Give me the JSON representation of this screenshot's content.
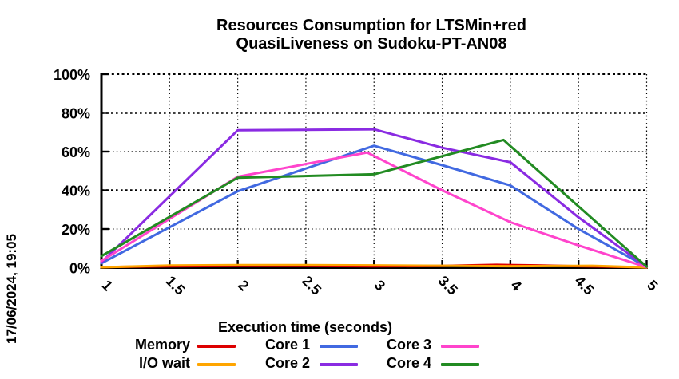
{
  "timestamp": "17/06/2024, 19:05",
  "title": {
    "line1": "Resources Consumption for LTSMin+red",
    "line2": "QuasiLiveness on Sudoku-PT-AN08"
  },
  "chart_data": {
    "type": "line",
    "title": "Resources Consumption for LTSMin+red QuasiLiveness on Sudoku-PT-AN08",
    "xlabel": "Execution time (seconds)",
    "ylabel": "",
    "xlim": [
      1,
      5
    ],
    "ylim": [
      0,
      100
    ],
    "grid": "dotted-black",
    "legend_position": "bottom",
    "xticks": {
      "values": [
        1,
        1.5,
        2,
        2.5,
        3,
        3.5,
        4,
        4.5,
        5
      ],
      "labels": [
        "1",
        "1.5",
        "2",
        "2.5",
        "3",
        "3.5",
        "4",
        "4.5",
        "5"
      ]
    },
    "yticks": {
      "values": [
        0,
        20,
        40,
        60,
        80,
        100
      ],
      "labels": [
        "0%",
        "20%",
        "40%",
        "60%",
        "80%",
        "100%"
      ]
    },
    "series": [
      {
        "name": "Memory",
        "color": "#dd0000",
        "points": [
          [
            1,
            0.3
          ],
          [
            1.5,
            0.7
          ],
          [
            2,
            0.9
          ],
          [
            2.5,
            0.9
          ],
          [
            3,
            0.7
          ],
          [
            3.5,
            0.9
          ],
          [
            3.9,
            1.5
          ],
          [
            4.2,
            1.2
          ],
          [
            4.5,
            0.8
          ],
          [
            5,
            0.2
          ]
        ]
      },
      {
        "name": "I/O wait",
        "color": "#ffa500",
        "points": [
          [
            1,
            0.2
          ],
          [
            1.5,
            1.1
          ],
          [
            2,
            1.3
          ],
          [
            2.5,
            1.3
          ],
          [
            3,
            1.2
          ],
          [
            3.5,
            1.0
          ],
          [
            4,
            0.8
          ],
          [
            4.6,
            1.0
          ],
          [
            5,
            0.1
          ]
        ]
      },
      {
        "name": "Core 1",
        "color": "#4169e1",
        "points": [
          [
            1,
            2.3
          ],
          [
            2,
            39.5
          ],
          [
            3,
            63
          ],
          [
            3.5,
            53
          ],
          [
            4,
            42.5
          ],
          [
            4.5,
            20
          ],
          [
            5,
            0.4
          ]
        ]
      },
      {
        "name": "Core 2",
        "color": "#8a2be2",
        "points": [
          [
            1,
            2.8
          ],
          [
            2,
            71
          ],
          [
            3,
            71.5
          ],
          [
            3.5,
            62
          ],
          [
            4,
            54.5
          ],
          [
            4.5,
            26
          ],
          [
            5,
            0.4
          ]
        ]
      },
      {
        "name": "Core 3",
        "color": "#ff44cc",
        "points": [
          [
            1,
            3.5
          ],
          [
            2,
            47
          ],
          [
            2.95,
            59.5
          ],
          [
            3.5,
            40
          ],
          [
            4,
            23.5
          ],
          [
            4.5,
            11.5
          ],
          [
            5,
            0.3
          ]
        ]
      },
      {
        "name": "Core 4",
        "color": "#228b22",
        "points": [
          [
            1,
            6
          ],
          [
            2,
            46.5
          ],
          [
            3,
            48.3
          ],
          [
            3.95,
            66
          ],
          [
            5,
            0.5
          ]
        ]
      }
    ]
  }
}
